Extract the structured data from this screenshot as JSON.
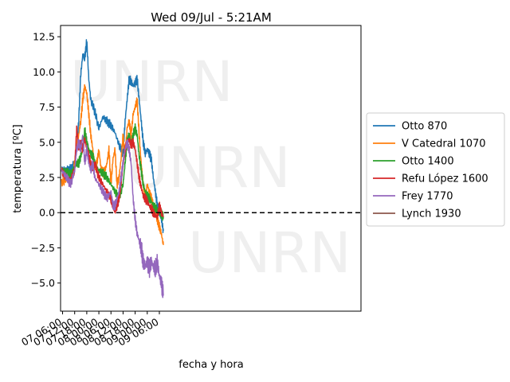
{
  "chart_data": {
    "type": "line",
    "title": "Wed 09/Jul - 5:21AM",
    "xlabel": "fecha y hora",
    "ylabel": "temperatura [ºC]",
    "watermark": "UNRN",
    "x_unit": "hours since 07 00:00",
    "xlim": [
      5.0,
      154.0
    ],
    "ylim": [
      -7.0,
      13.3
    ],
    "x_ticks": [
      {
        "h": 6,
        "label": "07 06:00"
      },
      {
        "h": 12,
        "label": "07 12:00"
      },
      {
        "h": 18,
        "label": "07 18:00"
      },
      {
        "h": 24,
        "label": "08 00:00"
      },
      {
        "h": 30,
        "label": "08 06:00"
      },
      {
        "h": 36,
        "label": "08 12:00"
      },
      {
        "h": 42,
        "label": "08 18:00"
      },
      {
        "h": 48,
        "label": "09 00:00"
      },
      {
        "h": 54,
        "label": "09 06:00"
      }
    ],
    "y_ticks": [
      -5.0,
      -2.5,
      0.0,
      2.5,
      5.0,
      7.5,
      10.0,
      12.5
    ],
    "y_tick_labels": [
      "−5.0",
      "−2.5",
      "0.0",
      "2.5",
      "5.0",
      "7.5",
      "10.0",
      "12.5"
    ],
    "hline": {
      "y": 0,
      "style": "dashed",
      "color": "#000000"
    },
    "legend_position": "right",
    "series": [
      {
        "name": "Otto 870",
        "color": "#1f77b4",
        "x": [
          5.5,
          8,
          10,
          12,
          13,
          14,
          15,
          16,
          17,
          18,
          19,
          20,
          22,
          24,
          26,
          28,
          30,
          32,
          34,
          36,
          37,
          38,
          39,
          40,
          41,
          42,
          43,
          44,
          45,
          46,
          47,
          48,
          49,
          50,
          51,
          52,
          53,
          54,
          55,
          56
        ],
        "y": [
          3.2,
          3.0,
          3.1,
          3.6,
          4.5,
          6.5,
          9.8,
          11.2,
          11.0,
          12.2,
          9.5,
          8.0,
          7.2,
          6.0,
          6.8,
          6.5,
          6.2,
          5.7,
          4.8,
          4.2,
          6.5,
          8.0,
          9.5,
          9.3,
          9.0,
          9.2,
          9.5,
          8.0,
          6.5,
          5.0,
          4.2,
          4.5,
          4.2,
          3.8,
          2.5,
          1.5,
          0.5,
          0.0,
          -0.5,
          -1.3
        ]
      },
      {
        "name": "V Catedral 1070",
        "color": "#ff7f0e",
        "x": [
          5.5,
          8,
          10,
          12,
          13,
          14,
          15,
          16,
          17,
          18,
          19,
          20,
          21,
          22,
          23,
          24,
          25,
          26,
          27,
          28,
          29,
          30,
          31,
          32,
          33,
          34,
          35,
          36,
          37,
          38,
          39,
          40,
          41,
          42,
          43,
          44,
          45,
          46,
          47,
          48,
          49,
          50,
          51,
          52,
          53,
          54,
          55,
          56
        ],
        "y": [
          2.1,
          2.4,
          2.2,
          3.5,
          4.8,
          5.5,
          6.5,
          8.0,
          9.0,
          8.5,
          7.0,
          5.5,
          4.5,
          3.2,
          3.5,
          4.5,
          3.2,
          2.8,
          3.0,
          3.5,
          4.5,
          2.0,
          3.8,
          4.5,
          2.0,
          2.5,
          3.8,
          5.5,
          4.0,
          6.0,
          6.5,
          5.5,
          7.0,
          7.5,
          8.0,
          5.5,
          3.5,
          2.0,
          1.0,
          2.0,
          1.5,
          1.0,
          0.5,
          0.0,
          -0.5,
          -1.0,
          -1.5,
          -2.3
        ]
      },
      {
        "name": "Otto 1400",
        "color": "#2ca02c",
        "x": [
          5.5,
          8,
          10,
          12,
          13,
          14,
          15,
          16,
          17,
          18,
          19,
          20,
          21,
          22,
          24,
          26,
          28,
          30,
          32,
          34,
          36,
          37,
          38,
          39,
          40,
          41,
          42,
          43,
          44,
          45,
          46,
          47,
          48,
          49,
          50,
          51,
          52,
          53,
          54,
          55,
          56
        ],
        "y": [
          3.1,
          2.9,
          2.7,
          3.2,
          3.5,
          3.5,
          4.0,
          4.5,
          5.9,
          5.0,
          4.5,
          4.2,
          4.0,
          3.5,
          3.0,
          2.8,
          2.5,
          2.0,
          1.5,
          1.0,
          2.0,
          3.5,
          5.0,
          5.5,
          5.0,
          5.5,
          6.0,
          5.5,
          4.0,
          3.0,
          2.0,
          1.5,
          1.2,
          1.0,
          0.8,
          0.5,
          0.3,
          0.2,
          0.0,
          -0.1,
          -0.3
        ]
      },
      {
        "name": "Refu López 1600",
        "color": "#d62728",
        "x": [
          5.5,
          8,
          10,
          12,
          13,
          14,
          15,
          16,
          17,
          18,
          19,
          20,
          21,
          22,
          24,
          26,
          28,
          30,
          31,
          32,
          33,
          34,
          35,
          36,
          37,
          38,
          39,
          40,
          41,
          42,
          43,
          44,
          45,
          46,
          47,
          48,
          49,
          50,
          51,
          52,
          53,
          54,
          55,
          56
        ],
        "y": [
          2.9,
          2.5,
          2.4,
          3.0,
          6.0,
          4.5,
          5.0,
          4.5,
          5.2,
          4.5,
          4.0,
          3.5,
          3.0,
          3.5,
          2.5,
          2.0,
          1.5,
          1.0,
          0.5,
          0.0,
          0.5,
          1.0,
          2.0,
          3.5,
          4.5,
          5.0,
          5.2,
          4.8,
          5.0,
          4.5,
          3.5,
          2.5,
          1.8,
          1.2,
          1.0,
          0.8,
          0.5,
          0.3,
          0.0,
          -0.2,
          -0.3,
          0.5,
          0.0,
          -0.3
        ]
      },
      {
        "name": "Frey 1770",
        "color": "#9467bd",
        "x": [
          5.5,
          8,
          10,
          12,
          13,
          14,
          15,
          16,
          17,
          18,
          19,
          20,
          21,
          22,
          24,
          26,
          28,
          30,
          31,
          32,
          33,
          34,
          35,
          36,
          37,
          38,
          39,
          40,
          41,
          42,
          43,
          44,
          45,
          46,
          47,
          48,
          49,
          50,
          51,
          52,
          53,
          54,
          55,
          56
        ],
        "y": [
          3.0,
          2.5,
          2.0,
          3.0,
          4.5,
          5.0,
          4.5,
          5.5,
          3.5,
          4.5,
          3.5,
          3.0,
          3.5,
          2.5,
          2.0,
          1.5,
          1.0,
          1.5,
          0.5,
          0.5,
          1.0,
          1.5,
          2.5,
          3.5,
          4.5,
          5.0,
          4.5,
          3.5,
          1.0,
          -0.5,
          -1.5,
          -2.0,
          -2.5,
          -3.5,
          -3.8,
          -3.5,
          -4.0,
          -3.5,
          -3.8,
          -4.0,
          -3.5,
          -4.5,
          -5.0,
          -5.9
        ]
      },
      {
        "name": "Lynch 1930",
        "color": "#8c564b",
        "x": [],
        "y": []
      }
    ]
  }
}
